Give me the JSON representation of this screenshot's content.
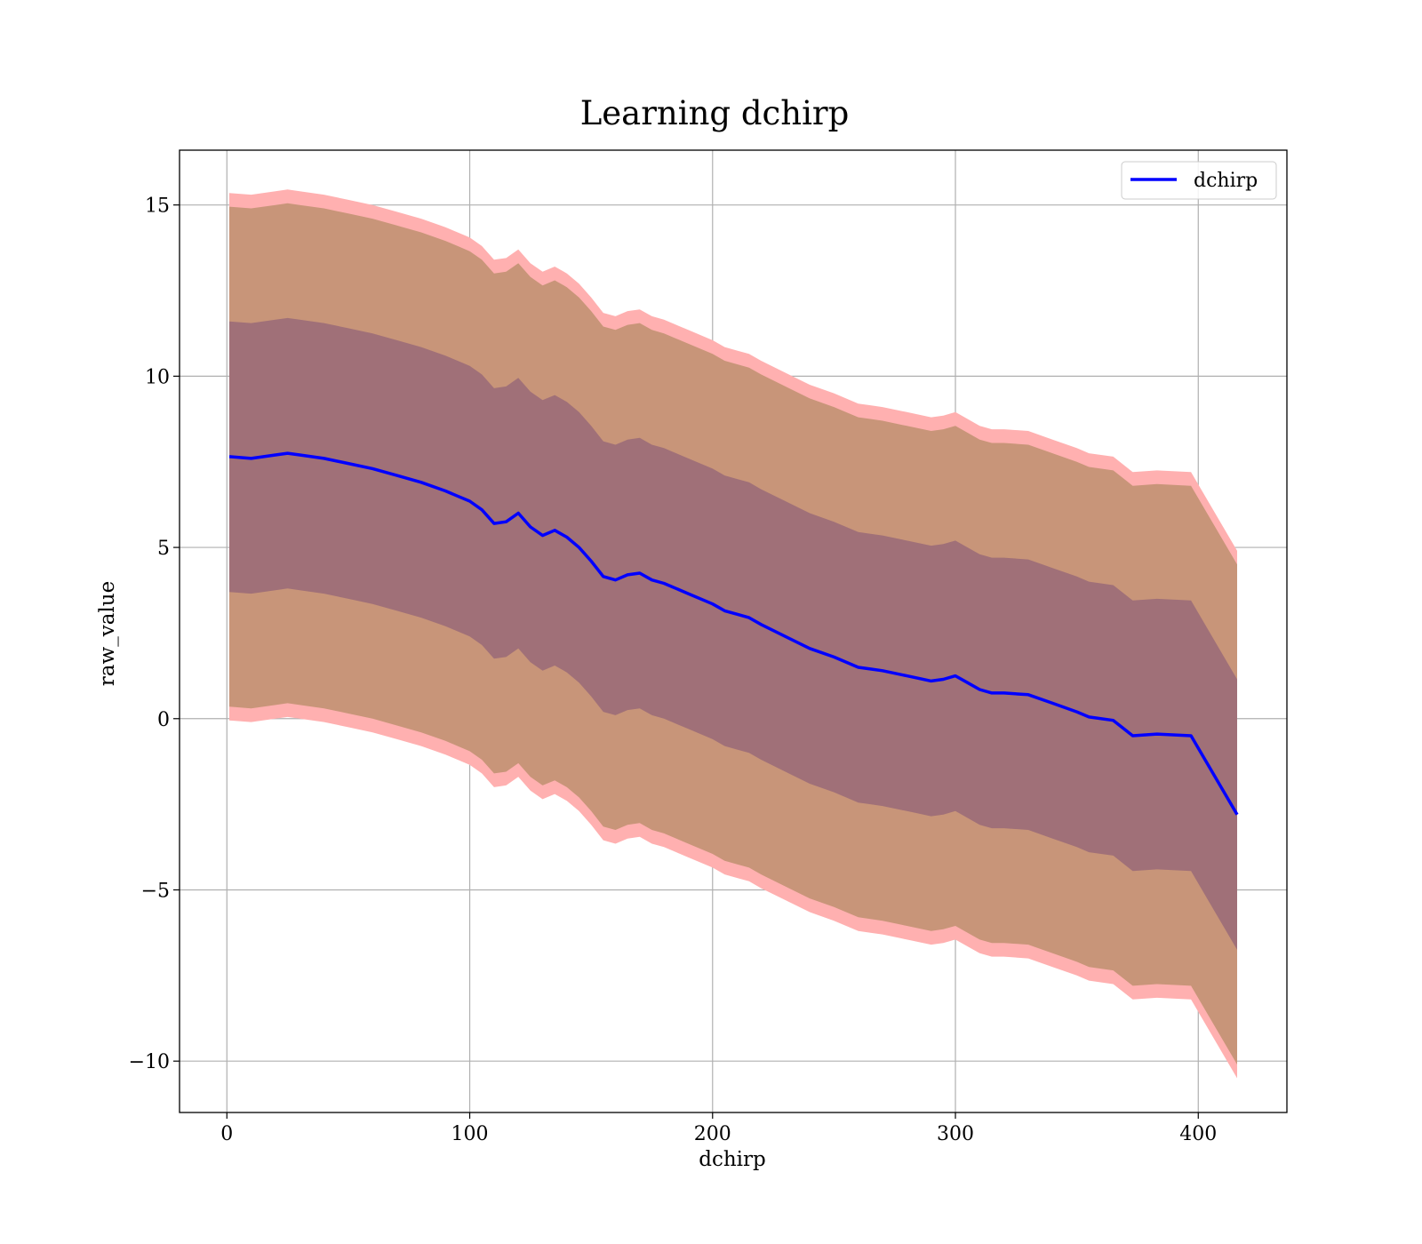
{
  "chart_data": {
    "type": "line",
    "title": "Learning dchirp",
    "xlabel": "dchirp",
    "ylabel": "raw_value",
    "xlim": [
      -19.5,
      436.5
    ],
    "ylim": [
      -11.5,
      16.6
    ],
    "xticks": [
      0,
      100,
      200,
      300,
      400
    ],
    "xtick_labels": [
      "0",
      "100",
      "200",
      "300",
      "400"
    ],
    "yticks": [
      -10,
      -5,
      0,
      5,
      10,
      15
    ],
    "ytick_labels": [
      "−10",
      "−5",
      "0",
      "5",
      "10",
      "15"
    ],
    "grid": true,
    "legend": {
      "position": "top-right",
      "entries": [
        "dchirp"
      ]
    },
    "colors": {
      "line": "#0000ff",
      "outer_band": "#ffb0b0",
      "middle_band": "#c89579",
      "inner_band": "#a07078",
      "grid": "#b0b0b0"
    },
    "series": [
      {
        "name": "dchirp",
        "x": [
          1,
          10,
          20,
          25,
          30,
          40,
          50,
          60,
          70,
          80,
          90,
          95,
          100,
          105,
          110,
          115,
          120,
          125,
          130,
          135,
          140,
          145,
          150,
          155,
          160,
          165,
          170,
          175,
          180,
          190,
          200,
          205,
          210,
          215,
          220,
          230,
          240,
          250,
          260,
          265,
          270,
          280,
          290,
          295,
          300,
          305,
          310,
          315,
          320,
          330,
          340,
          350,
          355,
          365,
          373,
          383,
          397,
          416
        ],
        "y": [
          7.65,
          7.6,
          7.7,
          7.75,
          7.7,
          7.6,
          7.45,
          7.3,
          7.1,
          6.9,
          6.65,
          6.5,
          6.35,
          6.1,
          5.7,
          5.75,
          6.0,
          5.6,
          5.35,
          5.5,
          5.3,
          5.0,
          4.6,
          4.15,
          4.05,
          4.2,
          4.25,
          4.05,
          3.95,
          3.65,
          3.35,
          3.15,
          3.05,
          2.95,
          2.75,
          2.4,
          2.05,
          1.8,
          1.5,
          1.45,
          1.4,
          1.25,
          1.1,
          1.15,
          1.25,
          1.05,
          0.85,
          0.75,
          0.75,
          0.7,
          0.45,
          0.2,
          0.05,
          -0.05,
          -0.5,
          -0.45,
          -0.5,
          -2.8
        ]
      }
    ],
    "bands": {
      "inner_half_width": 3.95,
      "middle_half_width": 7.3,
      "outer_half_width": 7.7
    }
  }
}
